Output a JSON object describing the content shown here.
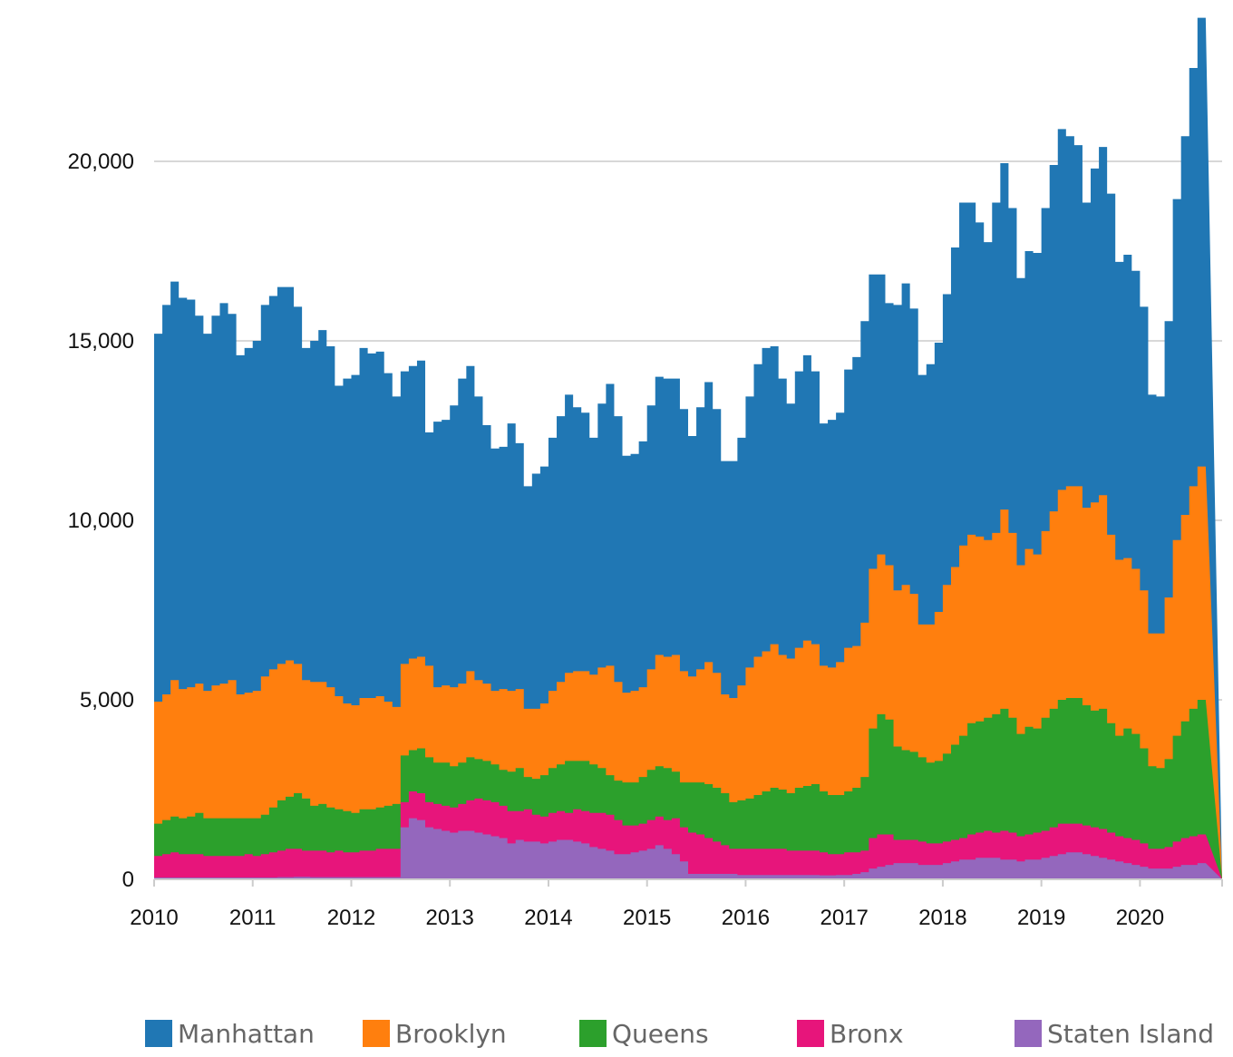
{
  "chart_data": {
    "type": "area",
    "stacked": true,
    "step": true,
    "grid": "horizontal",
    "legend_placement": "bottom",
    "y_ticks": [
      0,
      5000,
      10000,
      15000,
      20000
    ],
    "y_tick_labels": [
      "0",
      "5,000",
      "10,000",
      "15,000",
      "20,000"
    ],
    "ylim": [
      0,
      24000
    ],
    "x_ticks": [
      "2010",
      "2011",
      "2012",
      "2013",
      "2014",
      "2015",
      "2016",
      "2017",
      "2018",
      "2019",
      "2020"
    ],
    "x_range": [
      "2010-01",
      "2020-10"
    ],
    "x": [
      "2010-01",
      "2010-02",
      "2010-03",
      "2010-04",
      "2010-05",
      "2010-06",
      "2010-07",
      "2010-08",
      "2010-09",
      "2010-10",
      "2010-11",
      "2010-12",
      "2011-01",
      "2011-02",
      "2011-03",
      "2011-04",
      "2011-05",
      "2011-06",
      "2011-07",
      "2011-08",
      "2011-09",
      "2011-10",
      "2011-11",
      "2011-12",
      "2012-01",
      "2012-02",
      "2012-03",
      "2012-04",
      "2012-05",
      "2012-06",
      "2012-07",
      "2012-08",
      "2012-09",
      "2012-10",
      "2012-11",
      "2012-12",
      "2013-01",
      "2013-02",
      "2013-03",
      "2013-04",
      "2013-05",
      "2013-06",
      "2013-07",
      "2013-08",
      "2013-09",
      "2013-10",
      "2013-11",
      "2013-12",
      "2014-01",
      "2014-02",
      "2014-03",
      "2014-04",
      "2014-05",
      "2014-06",
      "2014-07",
      "2014-08",
      "2014-09",
      "2014-10",
      "2014-11",
      "2014-12",
      "2015-01",
      "2015-02",
      "2015-03",
      "2015-04",
      "2015-05",
      "2015-06",
      "2015-07",
      "2015-08",
      "2015-09",
      "2015-10",
      "2015-11",
      "2015-12",
      "2016-01",
      "2016-02",
      "2016-03",
      "2016-04",
      "2016-05",
      "2016-06",
      "2016-07",
      "2016-08",
      "2016-09",
      "2016-10",
      "2016-11",
      "2016-12",
      "2017-01",
      "2017-02",
      "2017-03",
      "2017-04",
      "2017-05",
      "2017-06",
      "2017-07",
      "2017-08",
      "2017-09",
      "2017-10",
      "2017-11",
      "2017-12",
      "2018-01",
      "2018-02",
      "2018-03",
      "2018-04",
      "2018-05",
      "2018-06",
      "2018-07",
      "2018-08",
      "2018-09",
      "2018-10",
      "2018-11",
      "2018-12",
      "2019-01",
      "2019-02",
      "2019-03",
      "2019-04",
      "2019-05",
      "2019-06",
      "2019-07",
      "2019-08",
      "2019-09",
      "2019-10",
      "2019-11",
      "2019-12",
      "2020-01",
      "2020-02",
      "2020-03",
      "2020-04",
      "2020-05",
      "2020-06",
      "2020-07",
      "2020-08",
      "2020-09",
      "2020-10"
    ],
    "series": [
      {
        "name": "Manhattan",
        "color": "#2077b4",
        "totals": [
          15200,
          16000,
          16650,
          16200,
          16150,
          15700,
          15200,
          15700,
          16050,
          15750,
          14600,
          14800,
          15000,
          16000,
          16250,
          16500,
          16500,
          15950,
          14800,
          15000,
          15300,
          14850,
          13750,
          13950,
          14050,
          14800,
          14650,
          14700,
          14100,
          13450,
          14150,
          14300,
          14450,
          12450,
          12750,
          12800,
          13200,
          13950,
          14300,
          13450,
          12650,
          12000,
          12050,
          12700,
          12150,
          10950,
          11300,
          11500,
          12300,
          12900,
          13500,
          13150,
          13000,
          12300,
          13250,
          13800,
          12900,
          11800,
          11850,
          12200,
          13200,
          14000,
          13950,
          13950,
          13100,
          12350,
          13150,
          13850,
          13100,
          11650,
          11650,
          12300,
          13450,
          14350,
          14800,
          14850,
          13950,
          13250,
          14150,
          14600,
          14150,
          12700,
          12800,
          13000,
          14200,
          14550,
          15550,
          16850,
          16850,
          16050,
          16000,
          16600,
          15900,
          14050,
          14350,
          14950,
          16300,
          17600,
          18850,
          18850,
          18300,
          17750,
          18850,
          19950,
          18700,
          16750,
          17500,
          17450,
          18700,
          19900,
          20900,
          20700,
          20450,
          18850,
          19800,
          20400,
          19100,
          17200,
          17400,
          16950,
          15950,
          13500,
          13450,
          15550,
          18950,
          20700,
          22600,
          24000
        ]
      },
      {
        "name": "Brooklyn",
        "color": "#ff7f0e",
        "totals": [
          4950,
          5150,
          5550,
          5300,
          5350,
          5450,
          5250,
          5400,
          5450,
          5550,
          5150,
          5200,
          5250,
          5650,
          5850,
          6000,
          6100,
          6000,
          5550,
          5500,
          5500,
          5350,
          5100,
          4900,
          4850,
          5050,
          5050,
          5100,
          4950,
          4800,
          6000,
          6150,
          6200,
          5950,
          5350,
          5400,
          5350,
          5450,
          5800,
          5550,
          5450,
          5250,
          5300,
          5250,
          5300,
          4750,
          4750,
          4900,
          5250,
          5500,
          5750,
          5800,
          5800,
          5700,
          5900,
          5950,
          5500,
          5200,
          5250,
          5350,
          5850,
          6250,
          6200,
          6250,
          5800,
          5650,
          5850,
          6050,
          5750,
          5150,
          5050,
          5400,
          5900,
          6200,
          6350,
          6550,
          6250,
          6150,
          6450,
          6650,
          6550,
          5950,
          5900,
          6050,
          6450,
          6500,
          7150,
          8650,
          9050,
          8750,
          8050,
          8200,
          7950,
          7100,
          7100,
          7450,
          8200,
          8700,
          9300,
          9600,
          9550,
          9450,
          9650,
          10300,
          9650,
          8750,
          9200,
          9050,
          9700,
          10250,
          10850,
          10950,
          10950,
          10350,
          10500,
          10700,
          9600,
          8900,
          8950,
          8650,
          8050,
          6850,
          6850,
          7850,
          9450,
          10150,
          10950,
          11500
        ]
      },
      {
        "name": "Queens",
        "color": "#2ca02c",
        "totals": [
          1550,
          1650,
          1750,
          1700,
          1750,
          1850,
          1700,
          1700,
          1700,
          1700,
          1700,
          1700,
          1700,
          1800,
          2000,
          2200,
          2300,
          2400,
          2250,
          2050,
          2100,
          2000,
          1950,
          1900,
          1850,
          1950,
          1950,
          2000,
          2050,
          2100,
          3450,
          3600,
          3650,
          3400,
          3250,
          3250,
          3150,
          3250,
          3400,
          3350,
          3300,
          3200,
          3050,
          3000,
          3100,
          2850,
          2800,
          2900,
          3100,
          3200,
          3300,
          3300,
          3300,
          3200,
          3100,
          2900,
          2750,
          2700,
          2700,
          2850,
          3050,
          3150,
          3100,
          3000,
          2700,
          2700,
          2700,
          2650,
          2550,
          2400,
          2150,
          2200,
          2250,
          2350,
          2450,
          2550,
          2500,
          2400,
          2550,
          2600,
          2650,
          2450,
          2350,
          2350,
          2450,
          2550,
          2850,
          4200,
          4600,
          4450,
          3700,
          3600,
          3550,
          3400,
          3250,
          3300,
          3500,
          3750,
          4000,
          4350,
          4400,
          4500,
          4600,
          4750,
          4500,
          4050,
          4250,
          4200,
          4500,
          4750,
          5000,
          5050,
          5050,
          4850,
          4700,
          4750,
          4350,
          4000,
          4200,
          4050,
          3650,
          3150,
          3100,
          3350,
          4000,
          4400,
          4750,
          5000
        ]
      },
      {
        "name": "Bronx",
        "color": "#e7157b",
        "totals": [
          650,
          700,
          750,
          700,
          700,
          700,
          650,
          650,
          650,
          650,
          650,
          700,
          650,
          700,
          750,
          800,
          850,
          850,
          800,
          800,
          800,
          750,
          800,
          750,
          750,
          800,
          800,
          850,
          850,
          850,
          2150,
          2450,
          2400,
          2150,
          2100,
          2050,
          2000,
          2100,
          2200,
          2250,
          2200,
          2150,
          2050,
          1900,
          1900,
          1950,
          1800,
          1750,
          1850,
          1900,
          1850,
          1950,
          1900,
          1850,
          1850,
          1800,
          1650,
          1500,
          1500,
          1550,
          1650,
          1750,
          1650,
          1700,
          1450,
          1300,
          1250,
          1150,
          1050,
          950,
          850,
          850,
          850,
          850,
          850,
          850,
          850,
          800,
          800,
          800,
          800,
          750,
          700,
          700,
          750,
          750,
          800,
          1150,
          1250,
          1250,
          1100,
          1100,
          1100,
          1050,
          1000,
          1000,
          1050,
          1100,
          1150,
          1250,
          1300,
          1350,
          1300,
          1350,
          1300,
          1200,
          1250,
          1300,
          1350,
          1450,
          1550,
          1550,
          1550,
          1500,
          1450,
          1400,
          1300,
          1200,
          1150,
          1100,
          1000,
          850,
          850,
          900,
          1050,
          1150,
          1200,
          1250
        ]
      },
      {
        "name": "Staten Island",
        "color": "#9467bd",
        "totals": [
          50,
          50,
          50,
          50,
          50,
          50,
          50,
          50,
          50,
          50,
          50,
          50,
          50,
          50,
          50,
          60,
          60,
          70,
          70,
          60,
          60,
          60,
          60,
          60,
          60,
          60,
          60,
          60,
          60,
          60,
          1450,
          1700,
          1650,
          1450,
          1400,
          1350,
          1300,
          1350,
          1350,
          1300,
          1250,
          1200,
          1150,
          1000,
          1100,
          1050,
          1050,
          1000,
          1050,
          1100,
          1100,
          1050,
          1000,
          900,
          850,
          800,
          700,
          700,
          750,
          800,
          850,
          950,
          850,
          700,
          500,
          150,
          150,
          150,
          150,
          150,
          150,
          120,
          120,
          120,
          120,
          120,
          120,
          120,
          120,
          120,
          120,
          110,
          110,
          120,
          120,
          150,
          200,
          300,
          350,
          400,
          450,
          450,
          450,
          400,
          400,
          400,
          450,
          500,
          550,
          550,
          600,
          600,
          600,
          550,
          550,
          500,
          550,
          550,
          600,
          650,
          700,
          750,
          750,
          700,
          650,
          600,
          550,
          500,
          450,
          400,
          350,
          300,
          300,
          300,
          350,
          400,
          400,
          450
        ]
      }
    ]
  }
}
